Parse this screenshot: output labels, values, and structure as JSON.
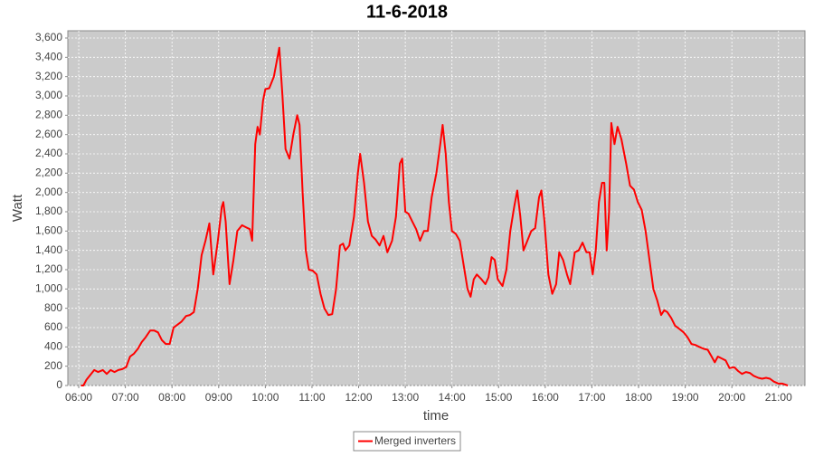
{
  "chart_data": {
    "type": "line",
    "title": "11-6-2018",
    "xlabel": "time",
    "ylabel": "Watt",
    "x": [
      "06:03",
      "06:06",
      "06:10",
      "06:15",
      "06:20",
      "06:25",
      "06:31",
      "06:36",
      "06:41",
      "06:46",
      "06:51",
      "06:56",
      "07:01",
      "07:06",
      "07:11",
      "07:16",
      "07:21",
      "07:26",
      "07:32",
      "07:37",
      "07:42",
      "07:47",
      "07:52",
      "07:57",
      "08:02",
      "08:07",
      "08:12",
      "08:18",
      "08:23",
      "08:28",
      "08:33",
      "08:38",
      "08:43",
      "08:48",
      "08:53",
      "08:59",
      "09:04",
      "09:06",
      "09:09",
      "09:14",
      "09:19",
      "09:24",
      "09:30",
      "09:35",
      "09:40",
      "09:43",
      "09:47",
      "09:50",
      "09:53",
      "09:57",
      "10:00",
      "10:05",
      "10:11",
      "10:18",
      "10:22",
      "10:26",
      "10:31",
      "10:36",
      "10:41",
      "10:44",
      "10:48",
      "10:52",
      "10:56",
      "11:01",
      "11:06",
      "11:11",
      "11:16",
      "11:21",
      "11:26",
      "11:31",
      "11:36",
      "11:40",
      "11:43",
      "11:48",
      "11:54",
      "11:59",
      "12:02",
      "12:07",
      "12:12",
      "12:17",
      "12:22",
      "12:27",
      "12:32",
      "12:37",
      "12:43",
      "12:48",
      "12:53",
      "12:56",
      "13:00",
      "13:04",
      "13:09",
      "13:14",
      "13:19",
      "13:24",
      "13:29",
      "13:34",
      "13:40",
      "13:45",
      "13:48",
      "13:52",
      "13:56",
      "14:00",
      "14:05",
      "14:10",
      "14:15",
      "14:20",
      "14:24",
      "14:28",
      "14:32",
      "14:38",
      "14:43",
      "14:47",
      "14:51",
      "14:55",
      "14:59",
      "15:05",
      "15:10",
      "15:15",
      "15:20",
      "15:24",
      "15:28",
      "15:32",
      "15:37",
      "15:42",
      "15:47",
      "15:52",
      "15:55",
      "15:59",
      "16:04",
      "16:09",
      "16:14",
      "16:18",
      "16:23",
      "16:28",
      "16:32",
      "16:38",
      "16:43",
      "16:48",
      "16:53",
      "16:57",
      "17:01",
      "17:05",
      "17:09",
      "17:13",
      "17:16",
      "17:19",
      "17:22",
      "17:25",
      "17:29",
      "17:33",
      "17:38",
      "17:44",
      "17:49",
      "17:54",
      "17:59",
      "18:04",
      "18:09",
      "18:14",
      "18:19",
      "18:24",
      "18:29",
      "18:33",
      "18:37",
      "18:42",
      "18:47",
      "18:52",
      "18:58",
      "19:03",
      "19:08",
      "19:13",
      "19:18",
      "19:24",
      "19:29",
      "19:34",
      "19:38",
      "19:42",
      "19:47",
      "19:52",
      "19:57",
      "20:03",
      "20:08",
      "20:13",
      "20:18",
      "20:23",
      "20:28",
      "20:34",
      "20:39",
      "20:44",
      "20:49",
      "20:54",
      "21:00",
      "21:05",
      "21:12"
    ],
    "series": [
      {
        "name": "Merged inverters",
        "color": "#ff0000",
        "values": [
          0,
          0,
          60,
          110,
          160,
          140,
          160,
          120,
          160,
          140,
          160,
          170,
          190,
          300,
          330,
          380,
          450,
          500,
          570,
          570,
          550,
          470,
          430,
          430,
          600,
          630,
          660,
          720,
          730,
          760,
          1000,
          1350,
          1500,
          1680,
          1150,
          1500,
          1850,
          1900,
          1700,
          1050,
          1300,
          1600,
          1660,
          1640,
          1620,
          1500,
          2500,
          2680,
          2600,
          2950,
          3070,
          3080,
          3200,
          3500,
          3000,
          2450,
          2350,
          2600,
          2800,
          2700,
          2000,
          1400,
          1200,
          1190,
          1150,
          950,
          800,
          730,
          740,
          1000,
          1450,
          1470,
          1400,
          1450,
          1750,
          2200,
          2400,
          2100,
          1700,
          1550,
          1510,
          1450,
          1550,
          1380,
          1500,
          1750,
          2300,
          2350,
          1800,
          1780,
          1700,
          1620,
          1500,
          1600,
          1600,
          1950,
          2200,
          2500,
          2700,
          2400,
          1900,
          1600,
          1570,
          1500,
          1250,
          1000,
          920,
          1100,
          1150,
          1100,
          1050,
          1120,
          1330,
          1300,
          1100,
          1030,
          1200,
          1600,
          1850,
          2020,
          1750,
          1400,
          1500,
          1600,
          1630,
          1950,
          2020,
          1700,
          1150,
          950,
          1050,
          1380,
          1300,
          1150,
          1050,
          1380,
          1400,
          1480,
          1380,
          1380,
          1150,
          1400,
          1900,
          2100,
          2100,
          1400,
          1800,
          2720,
          2500,
          2680,
          2550,
          2300,
          2070,
          2030,
          1900,
          1820,
          1600,
          1300,
          1000,
          880,
          730,
          780,
          760,
          700,
          620,
          590,
          550,
          500,
          430,
          420,
          400,
          380,
          370,
          300,
          240,
          300,
          280,
          260,
          180,
          190,
          150,
          120,
          140,
          130,
          100,
          80,
          70,
          80,
          70,
          40,
          20,
          20,
          0
        ]
      }
    ],
    "xlim": [
      "05:46",
      "21:34"
    ],
    "xticks": [
      "06:00",
      "07:00",
      "08:00",
      "09:00",
      "10:00",
      "11:00",
      "12:00",
      "13:00",
      "14:00",
      "15:00",
      "16:00",
      "17:00",
      "18:00",
      "19:00",
      "20:00",
      "21:00"
    ],
    "ylim": [
      0,
      3675
    ],
    "yticks": [
      0,
      200,
      400,
      600,
      800,
      {
        "value": 1000,
        "label": "1,000"
      },
      {
        "value": 1200,
        "label": "1,200"
      },
      {
        "value": 1400,
        "label": "1,400"
      },
      {
        "value": 1600,
        "label": "1,600"
      },
      {
        "value": 1800,
        "label": "1,800"
      },
      {
        "value": 2000,
        "label": "2,000"
      },
      {
        "value": 2200,
        "label": "2,200"
      },
      {
        "value": 2400,
        "label": "2,400"
      },
      {
        "value": 2600,
        "label": "2,600"
      },
      {
        "value": 2800,
        "label": "2,800"
      },
      {
        "value": 3000,
        "label": "3,000"
      },
      {
        "value": 3200,
        "label": "3,200"
      },
      {
        "value": 3400,
        "label": "3,400"
      },
      {
        "value": 3600,
        "label": "3,600"
      }
    ],
    "grid": true,
    "legend": "bottom"
  }
}
